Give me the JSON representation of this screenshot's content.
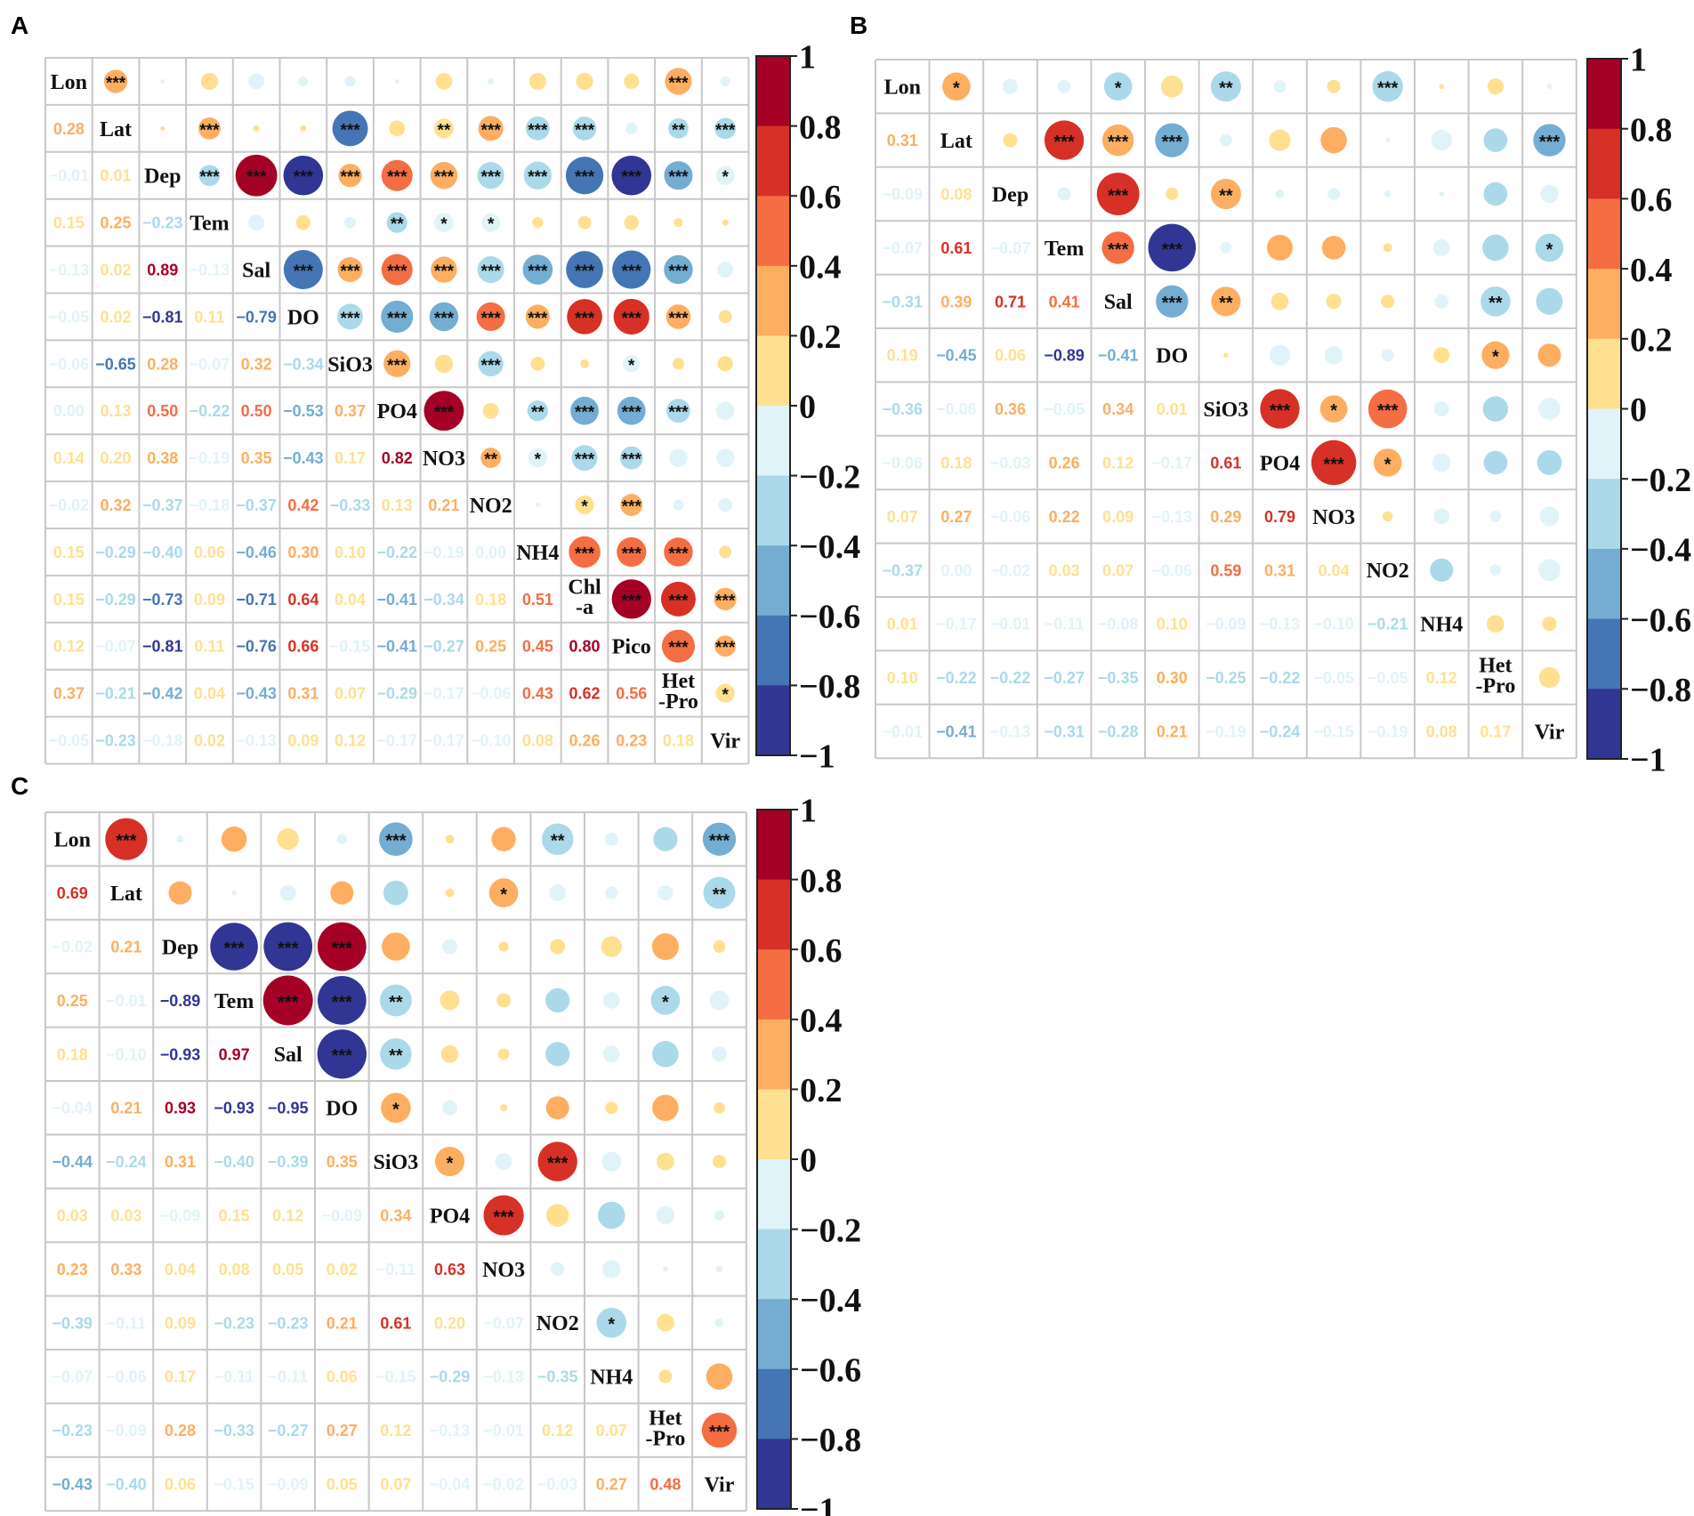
{
  "figure": "Correlation matrices (panels A, B, C)",
  "colorbar_ticks": [
    "1",
    "0.8",
    "0.6",
    "0.4",
    "0.2",
    "0",
    "−0.2",
    "−0.4",
    "−0.6",
    "−0.8",
    "−1"
  ],
  "colorbar_colors": [
    "#a50026",
    "#d73027",
    "#f46d43",
    "#fdae61",
    "#fee090",
    "#e0f3f8",
    "#abd9e9",
    "#74add1",
    "#4575b4",
    "#313695"
  ],
  "chart_data": [
    {
      "type": "heatmap",
      "panel": "A",
      "title": "A",
      "variables": [
        "Lon",
        "Lat",
        "Dep",
        "Tem",
        "Sal",
        "DO",
        "SiO3",
        "PO4",
        "NO3",
        "NO2",
        "NH4",
        "Chl-a",
        "Pico",
        "Het-Pro",
        "Vir"
      ],
      "labels": [
        "Lon",
        "Lat",
        "Dep",
        "Tem",
        "Sal",
        "DO",
        "SiO3",
        "PO4",
        "NO3",
        "NO2",
        "NH4",
        "Chl\n-a",
        "Pico",
        "Het\n-Pro",
        "Vir"
      ],
      "lower": [
        [],
        [
          "0.28"
        ],
        [
          "−0.01",
          "0.01"
        ],
        [
          "0.15",
          "0.25",
          "−0.23"
        ],
        [
          "−0.13",
          "0.02",
          "0.89",
          "−0.13"
        ],
        [
          "−0.05",
          "0.02",
          "−0.81",
          "0.11",
          "−0.79"
        ],
        [
          "−0.06",
          "−0.65",
          "0.28",
          "−0.07",
          "0.32",
          "−0.34"
        ],
        [
          "0.00",
          "0.13",
          "0.50",
          "−0.22",
          "0.50",
          "−0.53",
          "0.37"
        ],
        [
          "0.14",
          "0.20",
          "0.38",
          "−0.19",
          "0.35",
          "−0.43",
          "0.17",
          "0.82"
        ],
        [
          "−0.02",
          "0.32",
          "−0.37",
          "−0.18",
          "−0.37",
          "0.42",
          "−0.33",
          "0.13",
          "0.21"
        ],
        [
          "0.15",
          "−0.29",
          "−0.40",
          "0.06",
          "−0.46",
          "0.30",
          "0.10",
          "−0.22",
          "−0.19",
          "0.00"
        ],
        [
          "0.15",
          "−0.29",
          "−0.73",
          "0.09",
          "−0.71",
          "0.64",
          "0.04",
          "−0.41",
          "−0.34",
          "0.18",
          "0.51"
        ],
        [
          "0.12",
          "−0.07",
          "−0.81",
          "0.11",
          "−0.76",
          "0.66",
          "−0.15",
          "−0.41",
          "−0.27",
          "0.25",
          "0.45",
          "0.80"
        ],
        [
          "0.37",
          "−0.21",
          "−0.42",
          "0.04",
          "−0.43",
          "0.31",
          "0.07",
          "−0.29",
          "−0.17",
          "−0.06",
          "0.43",
          "0.62",
          "0.56"
        ],
        [
          "−0.05",
          "−0.23",
          "−0.18",
          "0.02",
          "−0.13",
          "0.09",
          "0.12",
          "−0.17",
          "−0.17",
          "−0.10",
          "0.08",
          "0.26",
          "0.23",
          "0.18"
        ]
      ],
      "stars": [
        [],
        [
          "***"
        ],
        [
          "",
          ""
        ],
        [
          "",
          "***",
          "***"
        ],
        [
          "",
          "",
          "***",
          ""
        ],
        [
          "",
          "",
          "***",
          "",
          "***"
        ],
        [
          "",
          "***",
          "***",
          "",
          "***",
          "***"
        ],
        [
          "",
          "",
          "***",
          "**",
          "***",
          "***",
          "***"
        ],
        [
          "",
          "**",
          "***",
          "*",
          "***",
          "***",
          "",
          "***"
        ],
        [
          "",
          "***",
          "***",
          "*",
          "***",
          "***",
          "***",
          "",
          "**"
        ],
        [
          "",
          "***",
          "***",
          "",
          "***",
          "***",
          "",
          "**",
          "*",
          ""
        ],
        [
          "",
          "***",
          "***",
          "",
          "***",
          "***",
          "",
          "***",
          "***",
          "*",
          "***"
        ],
        [
          "",
          "",
          "***",
          "",
          "***",
          "***",
          "*",
          "***",
          "***",
          "***",
          "***",
          "***"
        ],
        [
          "***",
          "**",
          "***",
          "",
          "***",
          "***",
          "",
          "***",
          "",
          "",
          "***",
          "***",
          "***"
        ],
        [
          "",
          "***",
          "*",
          "",
          "",
          "",
          "",
          "",
          "",
          "",
          "",
          "***",
          "***",
          "*"
        ]
      ]
    },
    {
      "type": "heatmap",
      "panel": "B",
      "title": "B",
      "variables": [
        "Lon",
        "Lat",
        "Dep",
        "Tem",
        "Sal",
        "DO",
        "SiO3",
        "PO4",
        "NO3",
        "NO2",
        "NH4",
        "Het-Pro",
        "Vir"
      ],
      "labels": [
        "Lon",
        "Lat",
        "Dep",
        "Tem",
        "Sal",
        "DO",
        "SiO3",
        "PO4",
        "NO3",
        "NO2",
        "NH4",
        "Het\n-Pro",
        "Vir"
      ],
      "lower": [
        [],
        [
          "0.31"
        ],
        [
          "−0.09",
          "0.08"
        ],
        [
          "−0.07",
          "0.61",
          "−0.07"
        ],
        [
          "−0.31",
          "0.39",
          "0.71",
          "0.41"
        ],
        [
          "0.19",
          "−0.45",
          "0.06",
          "−0.89",
          "−0.41"
        ],
        [
          "−0.36",
          "−0.06",
          "0.36",
          "−0.05",
          "0.34",
          "0.01"
        ],
        [
          "−0.06",
          "0.18",
          "−0.03",
          "0.26",
          "0.12",
          "−0.17",
          "0.61"
        ],
        [
          "0.07",
          "0.27",
          "−0.06",
          "0.22",
          "0.09",
          "−0.13",
          "0.29",
          "0.79"
        ],
        [
          "−0.37",
          "0.00",
          "−0.02",
          "0.03",
          "0.07",
          "−0.06",
          "0.59",
          "0.31",
          "0.04"
        ],
        [
          "0.01",
          "−0.17",
          "−0.01",
          "−0.11",
          "−0.08",
          "0.10",
          "−0.09",
          "−0.13",
          "−0.10",
          "−0.21"
        ],
        [
          "0.10",
          "−0.22",
          "−0.22",
          "−0.27",
          "−0.35",
          "0.30",
          "−0.25",
          "−0.22",
          "−0.05",
          "−0.05",
          "0.12"
        ],
        [
          "−0.01",
          "−0.41",
          "−0.13",
          "−0.31",
          "−0.28",
          "0.21",
          "−0.19",
          "−0.24",
          "−0.15",
          "−0.19",
          "0.08",
          "0.17"
        ]
      ],
      "stars": [
        [],
        [
          "*"
        ],
        [
          "",
          ""
        ],
        [
          "",
          "***",
          ""
        ],
        [
          "*",
          "***",
          "***",
          "***"
        ],
        [
          "",
          "***",
          "",
          "***",
          "***"
        ],
        [
          "**",
          "",
          "**",
          "",
          "**",
          ""
        ],
        [
          "",
          "",
          "",
          "",
          "",
          "",
          "***"
        ],
        [
          "",
          "",
          "",
          "",
          "",
          "",
          "*",
          "***"
        ],
        [
          "***",
          "",
          "",
          "",
          "",
          "",
          "***",
          "*",
          ""
        ],
        [
          "",
          "",
          "",
          "",
          "",
          "",
          "",
          "",
          "",
          ""
        ],
        [
          "",
          "",
          "",
          "",
          "**",
          "*",
          "",
          "",
          "",
          "",
          ""
        ],
        [
          "",
          "***",
          "",
          "*",
          "",
          "",
          "",
          "",
          "",
          "",
          "",
          ""
        ]
      ]
    },
    {
      "type": "heatmap",
      "panel": "C",
      "title": "C",
      "variables": [
        "Lon",
        "Lat",
        "Dep",
        "Tem",
        "Sal",
        "DO",
        "SiO3",
        "PO4",
        "NO3",
        "NO2",
        "NH4",
        "Het-Pro",
        "Vir"
      ],
      "labels": [
        "Lon",
        "Lat",
        "Dep",
        "Tem",
        "Sal",
        "DO",
        "SiO3",
        "PO4",
        "NO3",
        "NO2",
        "NH4",
        "Het\n-Pro",
        "Vir"
      ],
      "lower": [
        [],
        [
          "0.69"
        ],
        [
          "−0.02",
          "0.21"
        ],
        [
          "0.25",
          "−0.01",
          "−0.89"
        ],
        [
          "0.18",
          "−0.10",
          "−0.93",
          "0.97"
        ],
        [
          "−0.04",
          "0.21",
          "0.93",
          "−0.93",
          "−0.95"
        ],
        [
          "−0.44",
          "−0.24",
          "0.31",
          "−0.40",
          "−0.39",
          "0.35"
        ],
        [
          "0.03",
          "0.03",
          "−0.09",
          "0.15",
          "0.12",
          "−0.09",
          "0.34"
        ],
        [
          "0.23",
          "0.33",
          "0.04",
          "0.08",
          "0.05",
          "0.02",
          "−0.11",
          "0.63"
        ],
        [
          "−0.39",
          "−0.11",
          "0.09",
          "−0.23",
          "−0.23",
          "0.21",
          "0.61",
          "0.20",
          "−0.07"
        ],
        [
          "−0.07",
          "−0.06",
          "0.17",
          "−0.11",
          "−0.11",
          "0.06",
          "−0.15",
          "−0.29",
          "−0.13",
          "−0.35"
        ],
        [
          "−0.23",
          "−0.09",
          "0.28",
          "−0.33",
          "−0.27",
          "0.27",
          "0.12",
          "−0.13",
          "−0.01",
          "0.12",
          "0.07"
        ],
        [
          "−0.43",
          "−0.40",
          "0.06",
          "−0.15",
          "−0.09",
          "0.05",
          "0.07",
          "−0.04",
          "−0.02",
          "−0.03",
          "0.27",
          "0.48"
        ]
      ],
      "stars": [
        [],
        [
          "***"
        ],
        [
          "",
          ""
        ],
        [
          "",
          "",
          "***"
        ],
        [
          "",
          "",
          "***",
          "***"
        ],
        [
          "",
          "",
          "***",
          "***",
          "***"
        ],
        [
          "***",
          "",
          "",
          "**",
          "**",
          "*"
        ],
        [
          "",
          "",
          "",
          "",
          "",
          "",
          "*"
        ],
        [
          "",
          "*",
          "",
          "",
          "",
          "",
          "",
          "***"
        ],
        [
          "**",
          "",
          "",
          "",
          "",
          "",
          "***",
          "",
          ""
        ],
        [
          "",
          "",
          "",
          "",
          "",
          "",
          "",
          "",
          "",
          "*"
        ],
        [
          "",
          "",
          "",
          "*",
          "",
          "",
          "",
          "",
          "",
          "",
          ""
        ],
        [
          "***",
          "**",
          "",
          "",
          "",
          "",
          "",
          "",
          "",
          "",
          "",
          "***"
        ]
      ]
    }
  ]
}
